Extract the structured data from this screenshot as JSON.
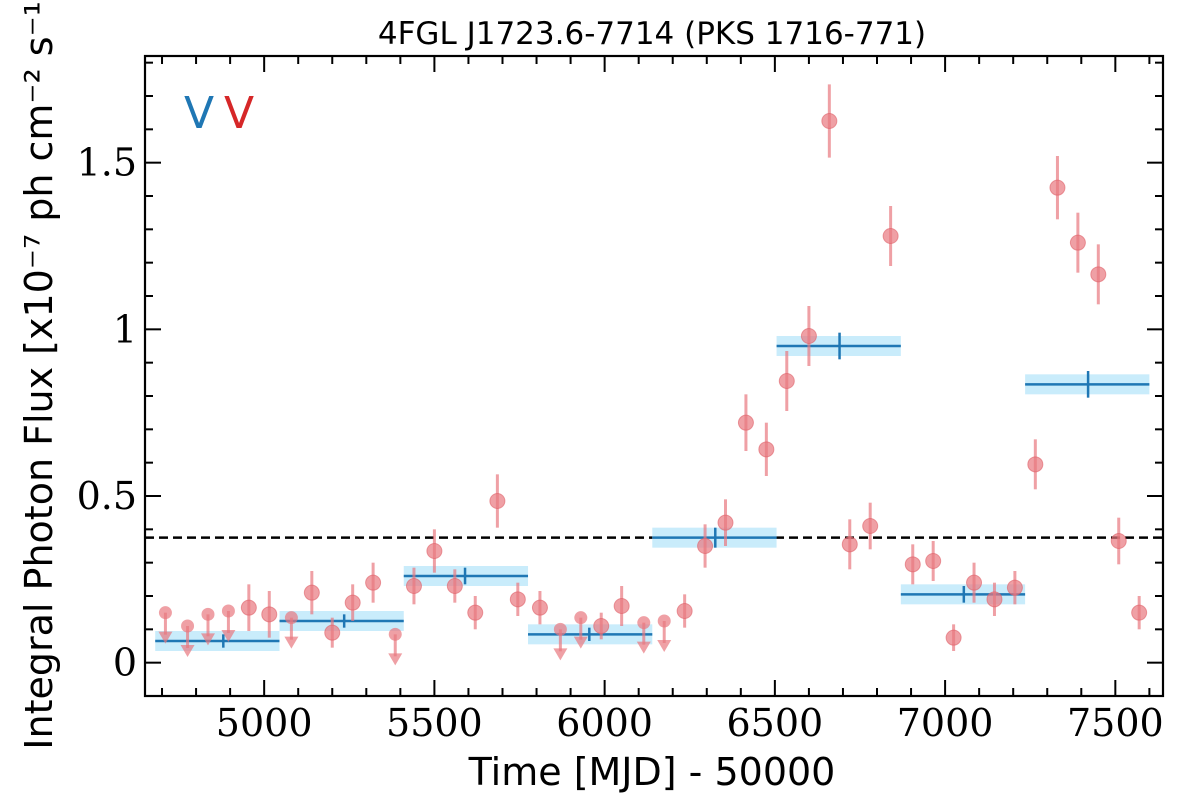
{
  "chart_data": {
    "type": "scatter",
    "title": "4FGL J1723.6-7714 (PKS 1716-771)",
    "xlabel": "Time [MJD] - 50000",
    "ylabel": "Integral Photon Flux [x10⁻⁷ ph cm⁻² s⁻¹]",
    "xlim": [
      4650,
      7640
    ],
    "ylim": [
      -0.1,
      1.82
    ],
    "x_ticks": [
      5000,
      5500,
      6000,
      6500,
      7000,
      7500
    ],
    "x_tick_labels": [
      "5000",
      "5500",
      "6000",
      "6500",
      "7000",
      "7500"
    ],
    "y_ticks": [
      0,
      0.5,
      1.0,
      1.5
    ],
    "y_tick_labels": [
      "0",
      "0.5",
      "1",
      "1.5"
    ],
    "reference_line": {
      "y": 0.375,
      "style": "dashed",
      "color": "#000000"
    },
    "legend": [
      {
        "symbol": "V",
        "color": "#1f77b4"
      },
      {
        "symbol": "V",
        "color": "#d62728"
      }
    ],
    "point_color": "#e8787f",
    "bin_color": "#1f77b4",
    "bin_band_color": "#c9ecfb",
    "points": [
      {
        "x": 4710,
        "y": 0.15,
        "err": 0.0,
        "upper_limit": true
      },
      {
        "x": 4775,
        "y": 0.11,
        "err": 0.0,
        "upper_limit": true
      },
      {
        "x": 4835,
        "y": 0.145,
        "err": 0.0,
        "upper_limit": true
      },
      {
        "x": 4895,
        "y": 0.155,
        "err": 0.0,
        "upper_limit": true
      },
      {
        "x": 4955,
        "y": 0.165,
        "err": 0.07,
        "upper_limit": false
      },
      {
        "x": 5015,
        "y": 0.145,
        "err": 0.07,
        "upper_limit": false
      },
      {
        "x": 5080,
        "y": 0.135,
        "err": 0.0,
        "upper_limit": true
      },
      {
        "x": 5140,
        "y": 0.21,
        "err": 0.065,
        "upper_limit": false
      },
      {
        "x": 5200,
        "y": 0.09,
        "err": 0.045,
        "upper_limit": false
      },
      {
        "x": 5260,
        "y": 0.18,
        "err": 0.055,
        "upper_limit": false
      },
      {
        "x": 5320,
        "y": 0.24,
        "err": 0.06,
        "upper_limit": false
      },
      {
        "x": 5385,
        "y": 0.085,
        "err": 0.0,
        "upper_limit": true
      },
      {
        "x": 5440,
        "y": 0.23,
        "err": 0.055,
        "upper_limit": false
      },
      {
        "x": 5500,
        "y": 0.335,
        "err": 0.065,
        "upper_limit": false
      },
      {
        "x": 5560,
        "y": 0.23,
        "err": 0.05,
        "upper_limit": false
      },
      {
        "x": 5620,
        "y": 0.15,
        "err": 0.05,
        "upper_limit": false
      },
      {
        "x": 5685,
        "y": 0.485,
        "err": 0.08,
        "upper_limit": false
      },
      {
        "x": 5745,
        "y": 0.19,
        "err": 0.05,
        "upper_limit": false
      },
      {
        "x": 5810,
        "y": 0.165,
        "err": 0.05,
        "upper_limit": false
      },
      {
        "x": 5870,
        "y": 0.1,
        "err": 0.0,
        "upper_limit": true
      },
      {
        "x": 5930,
        "y": 0.135,
        "err": 0.0,
        "upper_limit": true
      },
      {
        "x": 5990,
        "y": 0.11,
        "err": 0.04,
        "upper_limit": false
      },
      {
        "x": 6050,
        "y": 0.17,
        "err": 0.06,
        "upper_limit": false
      },
      {
        "x": 6115,
        "y": 0.12,
        "err": 0.0,
        "upper_limit": true
      },
      {
        "x": 6175,
        "y": 0.125,
        "err": 0.0,
        "upper_limit": true
      },
      {
        "x": 6235,
        "y": 0.155,
        "err": 0.05,
        "upper_limit": false
      },
      {
        "x": 6295,
        "y": 0.35,
        "err": 0.065,
        "upper_limit": false
      },
      {
        "x": 6355,
        "y": 0.42,
        "err": 0.07,
        "upper_limit": false
      },
      {
        "x": 6415,
        "y": 0.72,
        "err": 0.085,
        "upper_limit": false
      },
      {
        "x": 6475,
        "y": 0.64,
        "err": 0.08,
        "upper_limit": false
      },
      {
        "x": 6535,
        "y": 0.845,
        "err": 0.09,
        "upper_limit": false
      },
      {
        "x": 6600,
        "y": 0.98,
        "err": 0.09,
        "upper_limit": false
      },
      {
        "x": 6660,
        "y": 1.625,
        "err": 0.11,
        "upper_limit": false
      },
      {
        "x": 6720,
        "y": 0.355,
        "err": 0.075,
        "upper_limit": false
      },
      {
        "x": 6780,
        "y": 0.41,
        "err": 0.07,
        "upper_limit": false
      },
      {
        "x": 6840,
        "y": 1.28,
        "err": 0.09,
        "upper_limit": false
      },
      {
        "x": 6905,
        "y": 0.295,
        "err": 0.06,
        "upper_limit": false
      },
      {
        "x": 6965,
        "y": 0.305,
        "err": 0.06,
        "upper_limit": false
      },
      {
        "x": 7025,
        "y": 0.075,
        "err": 0.04,
        "upper_limit": false
      },
      {
        "x": 7085,
        "y": 0.24,
        "err": 0.06,
        "upper_limit": false
      },
      {
        "x": 7145,
        "y": 0.19,
        "err": 0.05,
        "upper_limit": false
      },
      {
        "x": 7205,
        "y": 0.225,
        "err": 0.05,
        "upper_limit": false
      },
      {
        "x": 7265,
        "y": 0.595,
        "err": 0.075,
        "upper_limit": false
      },
      {
        "x": 7330,
        "y": 1.425,
        "err": 0.095,
        "upper_limit": false
      },
      {
        "x": 7390,
        "y": 1.26,
        "err": 0.09,
        "upper_limit": false
      },
      {
        "x": 7450,
        "y": 1.165,
        "err": 0.09,
        "upper_limit": false
      },
      {
        "x": 7510,
        "y": 0.365,
        "err": 0.07,
        "upper_limit": false
      },
      {
        "x": 7570,
        "y": 0.15,
        "err": 0.05,
        "upper_limit": false
      }
    ],
    "bins": [
      {
        "x_start": 4680,
        "x_end": 5045,
        "x_center": 4880,
        "y": 0.065,
        "err": 0.02
      },
      {
        "x_start": 5045,
        "x_end": 5410,
        "x_center": 5235,
        "y": 0.125,
        "err": 0.02
      },
      {
        "x_start": 5410,
        "x_end": 5775,
        "x_center": 5590,
        "y": 0.26,
        "err": 0.025
      },
      {
        "x_start": 5775,
        "x_end": 6140,
        "x_center": 5955,
        "y": 0.085,
        "err": 0.02
      },
      {
        "x_start": 6140,
        "x_end": 6505,
        "x_center": 6325,
        "y": 0.375,
        "err": 0.03
      },
      {
        "x_start": 6505,
        "x_end": 6870,
        "x_center": 6690,
        "y": 0.95,
        "err": 0.04
      },
      {
        "x_start": 6870,
        "x_end": 7235,
        "x_center": 7055,
        "y": 0.205,
        "err": 0.025
      },
      {
        "x_start": 7235,
        "x_end": 7600,
        "x_center": 7420,
        "y": 0.835,
        "err": 0.04
      }
    ]
  }
}
